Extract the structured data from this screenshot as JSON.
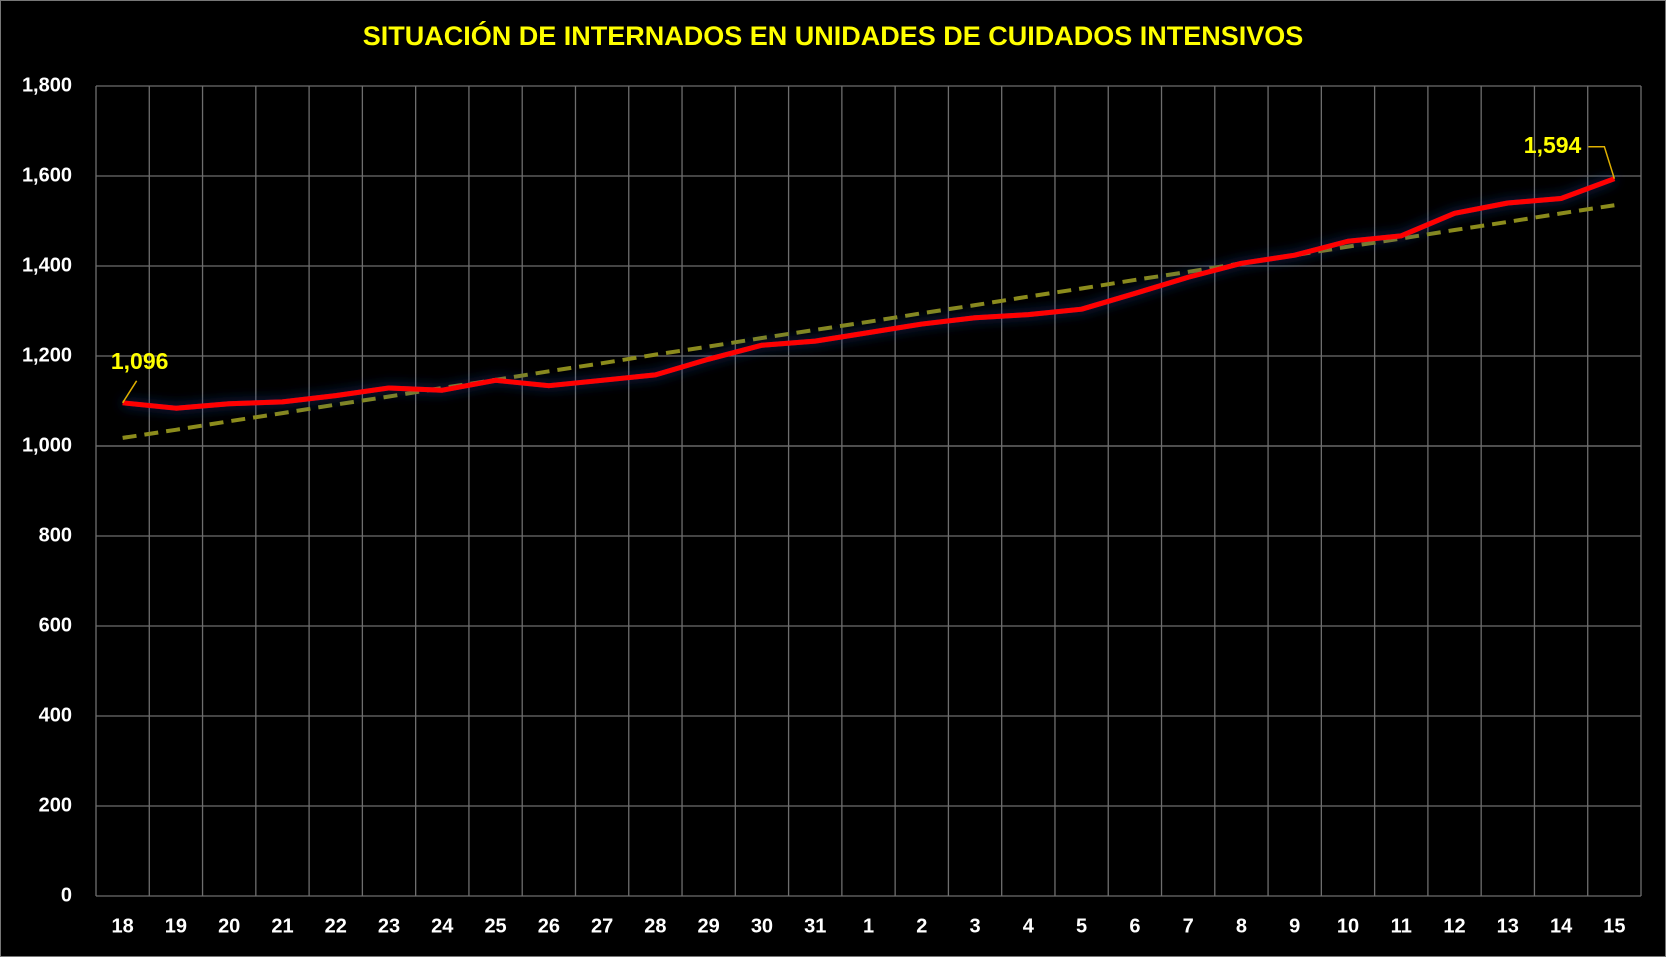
{
  "chart_data": {
    "type": "line",
    "title": "SITUACIÓN DE INTERNADOS EN UNIDADES DE CUIDADOS INTENSIVOS",
    "categories": [
      "18",
      "19",
      "20",
      "21",
      "22",
      "23",
      "24",
      "25",
      "26",
      "27",
      "28",
      "29",
      "30",
      "31",
      "1",
      "2",
      "3",
      "4",
      "5",
      "6",
      "7",
      "8",
      "9",
      "10",
      "11",
      "12",
      "13",
      "14",
      "15"
    ],
    "series": [
      {
        "color": "#ff0000",
        "values": [
          1096,
          1084,
          1094,
          1098,
          1112,
          1129,
          1124,
          1146,
          1134,
          1146,
          1158,
          1193,
          1224,
          1233,
          1252,
          1271,
          1285,
          1292,
          1304,
          1339,
          1375,
          1406,
          1424,
          1455,
          1467,
          1517,
          1540,
          1550,
          1594
        ],
        "value_labels": [
          "1,096",
          null,
          null,
          null,
          null,
          null,
          null,
          null,
          null,
          null,
          null,
          null,
          null,
          null,
          null,
          null,
          null,
          null,
          null,
          null,
          null,
          null,
          null,
          null,
          null,
          null,
          null,
          null,
          "1,594"
        ]
      },
      {
        "color": "#8c8c1c",
        "dashed": true,
        "values": [
          1018,
          1036,
          1055,
          1073,
          1092,
          1110,
          1129,
          1147,
          1166,
          1184,
          1203,
          1221,
          1240,
          1258,
          1276,
          1295,
          1313,
          1332,
          1350,
          1369,
          1387,
          1406,
          1424,
          1443,
          1461,
          1480,
          1498,
          1517,
          1535
        ]
      }
    ],
    "ylim": [
      0,
      1800
    ],
    "yticks": [
      0,
      200,
      400,
      600,
      800,
      1000,
      {
        "value": 1000,
        "label": "1,000"
      },
      {
        "value": 1200,
        "label": "1,200"
      },
      {
        "value": 1400,
        "label": "1,400"
      },
      {
        "value": 1600,
        "label": "1,600"
      },
      {
        "value": 1800,
        "label": "1,800"
      }
    ],
    "grid": true
  }
}
